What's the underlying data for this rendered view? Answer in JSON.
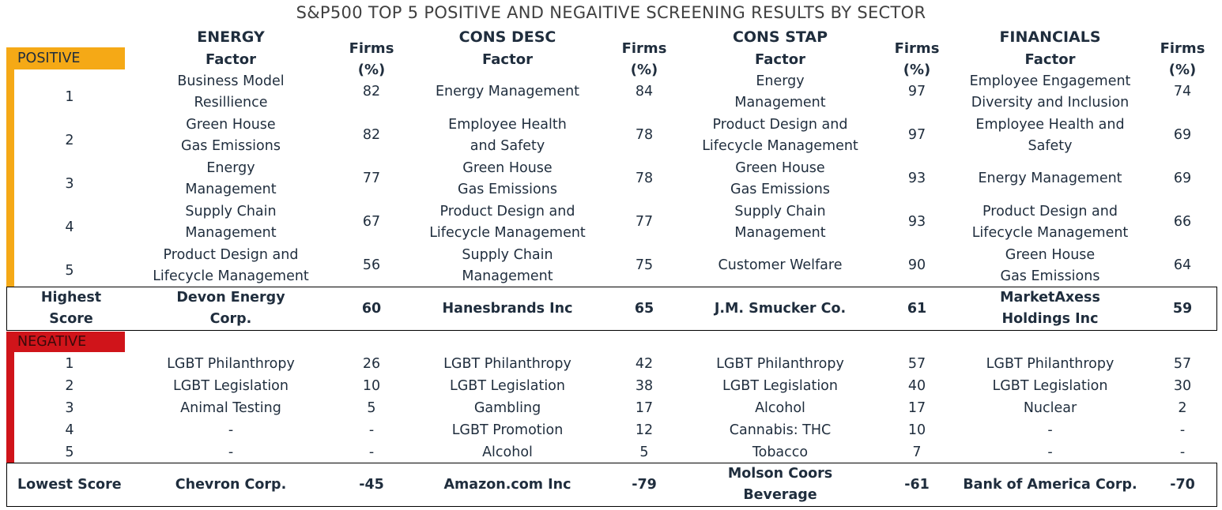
{
  "title": "S&P500 TOP 5 POSITIVE AND NEGAITIVE SCREENING RESULTS BY SECTOR",
  "sectors": [
    "ENERGY",
    "CONS DESC",
    "CONS STAP",
    "FINANCIALS"
  ],
  "column_headers": {
    "factor": "Factor",
    "firms": "Firms (%)"
  },
  "colors": {
    "positive": "#F5A916",
    "negative": "#D0141A"
  },
  "positive": {
    "label": "POSITIVE",
    "rows": [
      {
        "rank": "1",
        "cells": [
          [
            "Business Model\nResillience",
            "82"
          ],
          [
            "Energy Management",
            "84"
          ],
          [
            "Energy\nManagement",
            "97"
          ],
          [
            "Employee Engagement\nDiversity and Inclusion",
            "74"
          ]
        ]
      },
      {
        "rank": "2",
        "cells": [
          [
            "Green House\nGas Emissions",
            "82"
          ],
          [
            "Employee Health\nand Safety",
            "78"
          ],
          [
            "Product Design and\nLifecycle Management",
            "97"
          ],
          [
            "Employee Health and\nSafety",
            "69"
          ]
        ]
      },
      {
        "rank": "3",
        "cells": [
          [
            "Energy\nManagement",
            "77"
          ],
          [
            "Green House\nGas Emissions",
            "78"
          ],
          [
            "Green House\nGas Emissions",
            "93"
          ],
          [
            "Energy Management",
            "69"
          ]
        ]
      },
      {
        "rank": "4",
        "cells": [
          [
            "Supply Chain\nManagement",
            "67"
          ],
          [
            "Product Design and\nLifecycle Management",
            "77"
          ],
          [
            "Supply Chain\nManagement",
            "93"
          ],
          [
            "Product Design and\nLifecycle Management",
            "66"
          ]
        ]
      },
      {
        "rank": "5",
        "cells": [
          [
            "Product Design and\nLifecycle Management",
            "56"
          ],
          [
            "Supply Chain\nManagement",
            "75"
          ],
          [
            "Customer Welfare",
            "90"
          ],
          [
            "Green House\nGas Emissions",
            "64"
          ]
        ]
      }
    ],
    "summary": {
      "label": "Highest Score",
      "cells": [
        [
          "Devon Energy\nCorp.",
          "60"
        ],
        [
          "Hanesbrands Inc",
          "65"
        ],
        [
          "J.M. Smucker Co.",
          "61"
        ],
        [
          "MarketAxess\nHoldings Inc",
          "59"
        ]
      ]
    }
  },
  "negative": {
    "label": "NEGATIVE",
    "rows": [
      {
        "rank": "1",
        "cells": [
          [
            "LGBT Philanthropy",
            "26"
          ],
          [
            "LGBT Philanthropy",
            "42"
          ],
          [
            "LGBT Philanthropy",
            "57"
          ],
          [
            "LGBT Philanthropy",
            "57"
          ]
        ]
      },
      {
        "rank": "2",
        "cells": [
          [
            "LGBT Legislation",
            "10"
          ],
          [
            "LGBT Legislation",
            "38"
          ],
          [
            "LGBT Legislation",
            "40"
          ],
          [
            "LGBT Legislation",
            "30"
          ]
        ]
      },
      {
        "rank": "3",
        "cells": [
          [
            "Animal Testing",
            "5"
          ],
          [
            "Gambling",
            "17"
          ],
          [
            "Alcohol",
            "17"
          ],
          [
            "Nuclear",
            "2"
          ]
        ]
      },
      {
        "rank": "4",
        "cells": [
          [
            "-",
            "-"
          ],
          [
            "LGBT Promotion",
            "12"
          ],
          [
            "Cannabis: THC",
            "10"
          ],
          [
            "-",
            "-"
          ]
        ]
      },
      {
        "rank": "5",
        "cells": [
          [
            "-",
            "-"
          ],
          [
            "Alcohol",
            "5"
          ],
          [
            "Tobacco",
            "7"
          ],
          [
            "-",
            "-"
          ]
        ]
      }
    ],
    "summary": {
      "label": "Lowest Score",
      "cells": [
        [
          "Chevron Corp.",
          "-45"
        ],
        [
          "Amazon.com Inc",
          "-79"
        ],
        [
          "Molson Coors\nBeverage",
          "-61"
        ],
        [
          "Bank of America Corp.",
          "-70"
        ]
      ]
    }
  }
}
